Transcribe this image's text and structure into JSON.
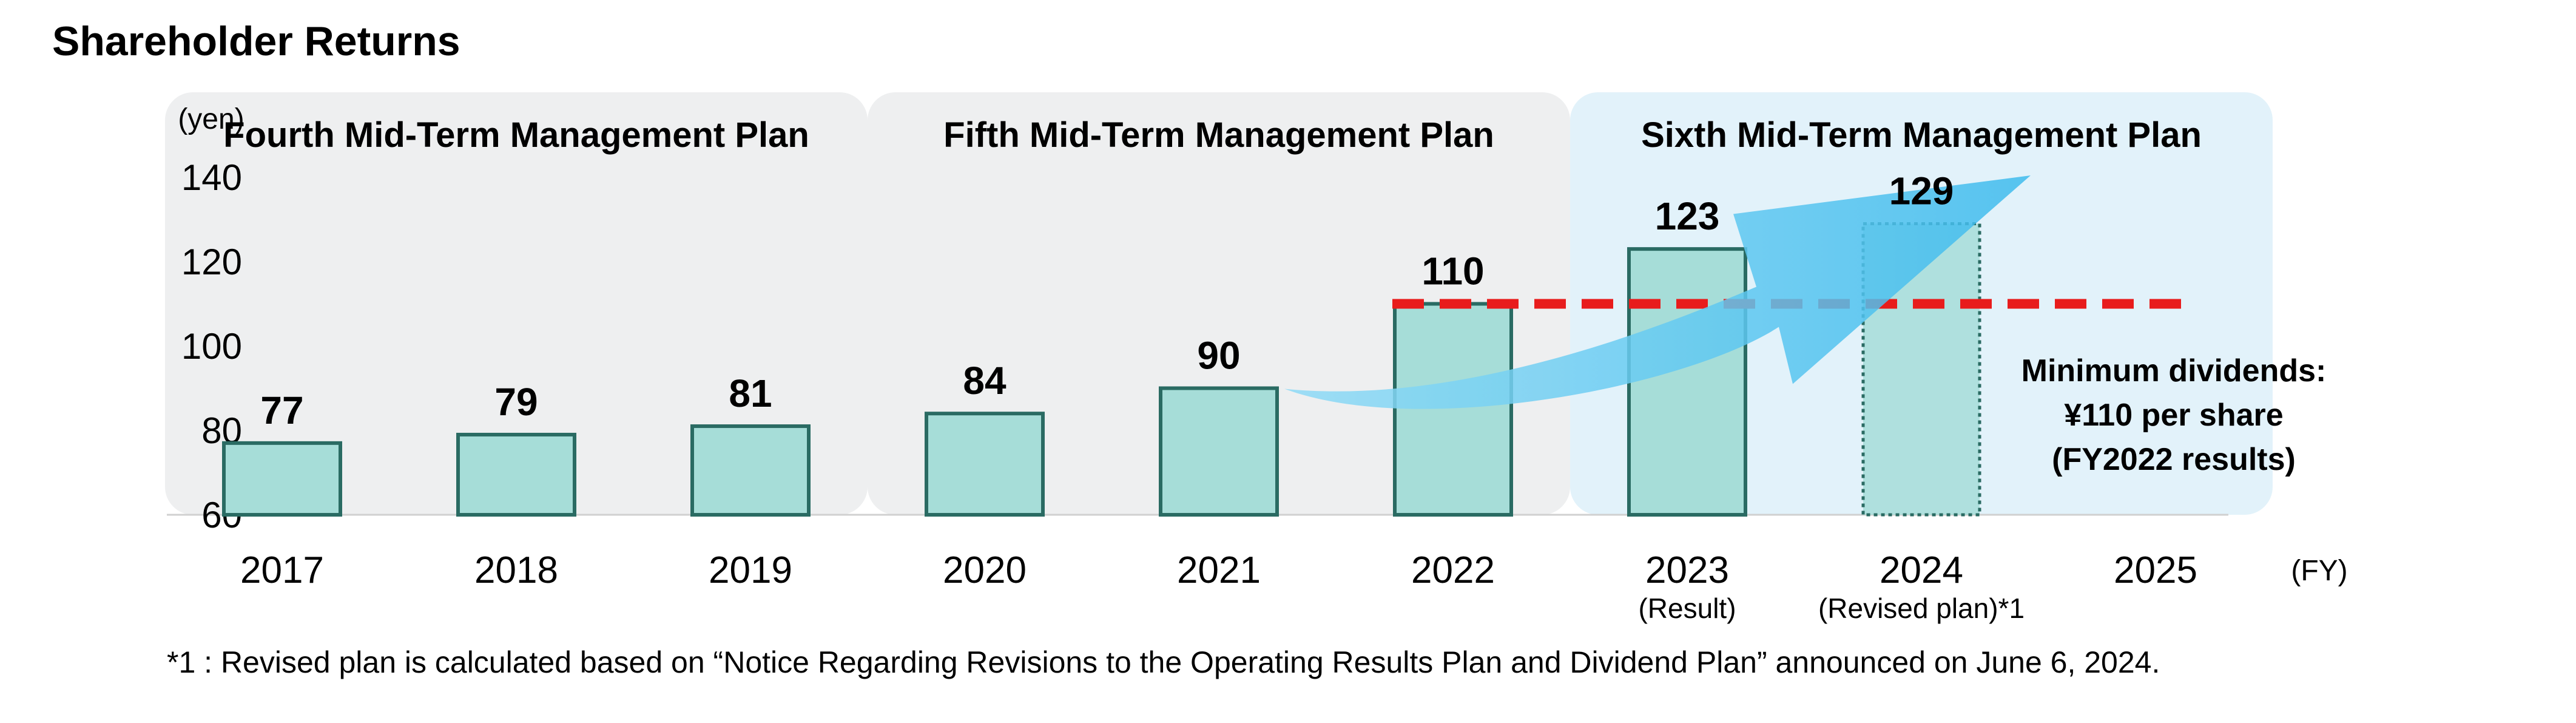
{
  "title": "Shareholder Returns",
  "chart_data": {
    "type": "bar",
    "y_unit": "(yen)",
    "x_unit": "(FY)",
    "categories": [
      "2017",
      "2018",
      "2019",
      "2020",
      "2021",
      "2022",
      "2023",
      "2024",
      "2025"
    ],
    "category_sublabels": [
      "",
      "",
      "",
      "",
      "",
      "",
      "(Result)",
      "(Revised plan)*1",
      ""
    ],
    "values": [
      77,
      79,
      81,
      84,
      90,
      110,
      123,
      129,
      null
    ],
    "value_labels": [
      "77",
      "79",
      "81",
      "84",
      "90",
      "110",
      "123",
      "129",
      ""
    ],
    "planned": [
      false,
      false,
      false,
      false,
      false,
      false,
      false,
      true,
      false
    ],
    "ylim": [
      60,
      140
    ],
    "yticks": [
      60,
      80,
      100,
      120,
      140
    ],
    "ytick_labels": [
      "60",
      "80",
      "100",
      "120",
      "140"
    ],
    "plans": [
      {
        "label": "Fourth Mid-Term Management Plan",
        "categories": [
          "2017",
          "2018",
          "2019"
        ],
        "color": "#eeeff0"
      },
      {
        "label": "Fifth Mid-Term Management Plan",
        "categories": [
          "2020",
          "2021",
          "2022"
        ],
        "color": "#eeeff0"
      },
      {
        "label": "Sixth Mid-Term Management Plan",
        "categories": [
          "2023",
          "2024",
          "2025"
        ],
        "color": "#e2f2fa"
      }
    ],
    "reference_line": {
      "value": 110,
      "from": "2022",
      "to": "2025",
      "color": "#e81c1c"
    },
    "reference_note": [
      "Minimum dividends:",
      "¥110 per share",
      "(FY2022 results)"
    ],
    "trend_arrow": {
      "from": "2021",
      "to": "2024",
      "color": "#5ac8f0"
    },
    "colors": {
      "bar_fill": "#a6ddd8",
      "bar_stroke": "#2a6b63",
      "axis": "#d0d0d0"
    }
  },
  "footnote": "*1 : Revised plan is calculated based on “Notice Regarding Revisions to the Operating Results Plan and Dividend Plan” announced on June 6, 2024."
}
